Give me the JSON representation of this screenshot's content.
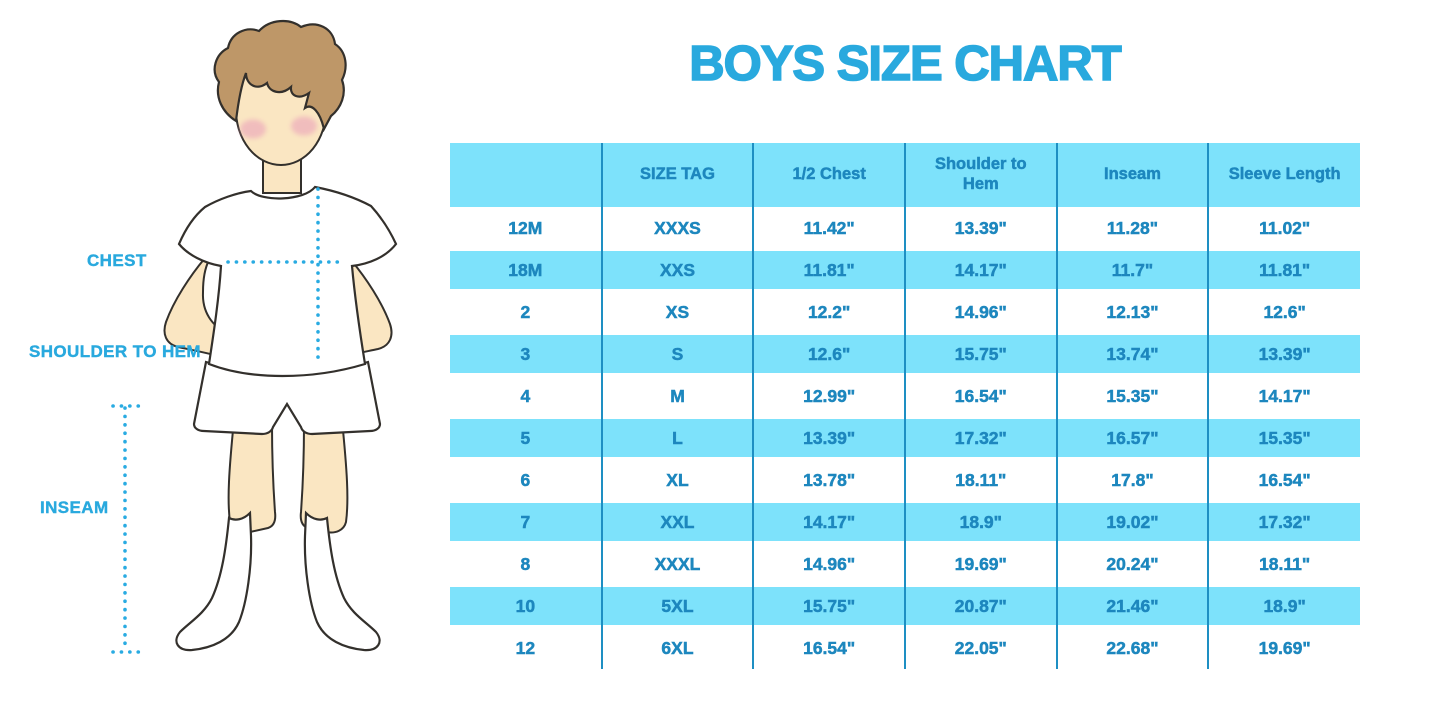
{
  "title": "BOYS SIZE CHART",
  "colors": {
    "accent": "#29A9DE",
    "table_text": "#1D87BE",
    "table_band": "#7DE2FB",
    "table_line": "#1E8FC3",
    "dotted_line": "#29ABE2",
    "skin": "#FAE6C2",
    "hair": "#BE9768",
    "blush": "#EBA4BA",
    "outline": "#33302C",
    "garment": "#FFFFFF"
  },
  "figure": {
    "chest_label": "CHEST",
    "shoulder_to_hem_label": "SHOULDER TO HEM",
    "inseam_label": "INSEAM"
  },
  "table": {
    "columns": [
      "",
      "SIZE TAG",
      "1/2 Chest",
      "Shoulder to Hem",
      "Inseam",
      "Sleeve Length"
    ],
    "rows": [
      [
        "12M",
        "XXXS",
        "11.42\"",
        "13.39\"",
        "11.28\"",
        "11.02\""
      ],
      [
        "18M",
        "XXS",
        "11.81\"",
        "14.17\"",
        "11.7\"",
        "11.81\""
      ],
      [
        "2",
        "XS",
        "12.2\"",
        "14.96\"",
        "12.13\"",
        "12.6\""
      ],
      [
        "3",
        "S",
        "12.6\"",
        "15.75\"",
        "13.74\"",
        "13.39\""
      ],
      [
        "4",
        "M",
        "12.99\"",
        "16.54\"",
        "15.35\"",
        "14.17\""
      ],
      [
        "5",
        "L",
        "13.39\"",
        "17.32\"",
        "16.57\"",
        "15.35\""
      ],
      [
        "6",
        "XL",
        "13.78\"",
        "18.11\"",
        "17.8\"",
        "16.54\""
      ],
      [
        "7",
        "XXL",
        "14.17\"",
        "18.9\"",
        "19.02\"",
        "17.32\""
      ],
      [
        "8",
        "XXXL",
        "14.96\"",
        "19.69\"",
        "20.24\"",
        "18.11\""
      ],
      [
        "10",
        "5XL",
        "15.75\"",
        "20.87\"",
        "21.46\"",
        "18.9\""
      ],
      [
        "12",
        "6XL",
        "16.54\"",
        "22.05\"",
        "22.68\"",
        "19.69\""
      ]
    ]
  }
}
